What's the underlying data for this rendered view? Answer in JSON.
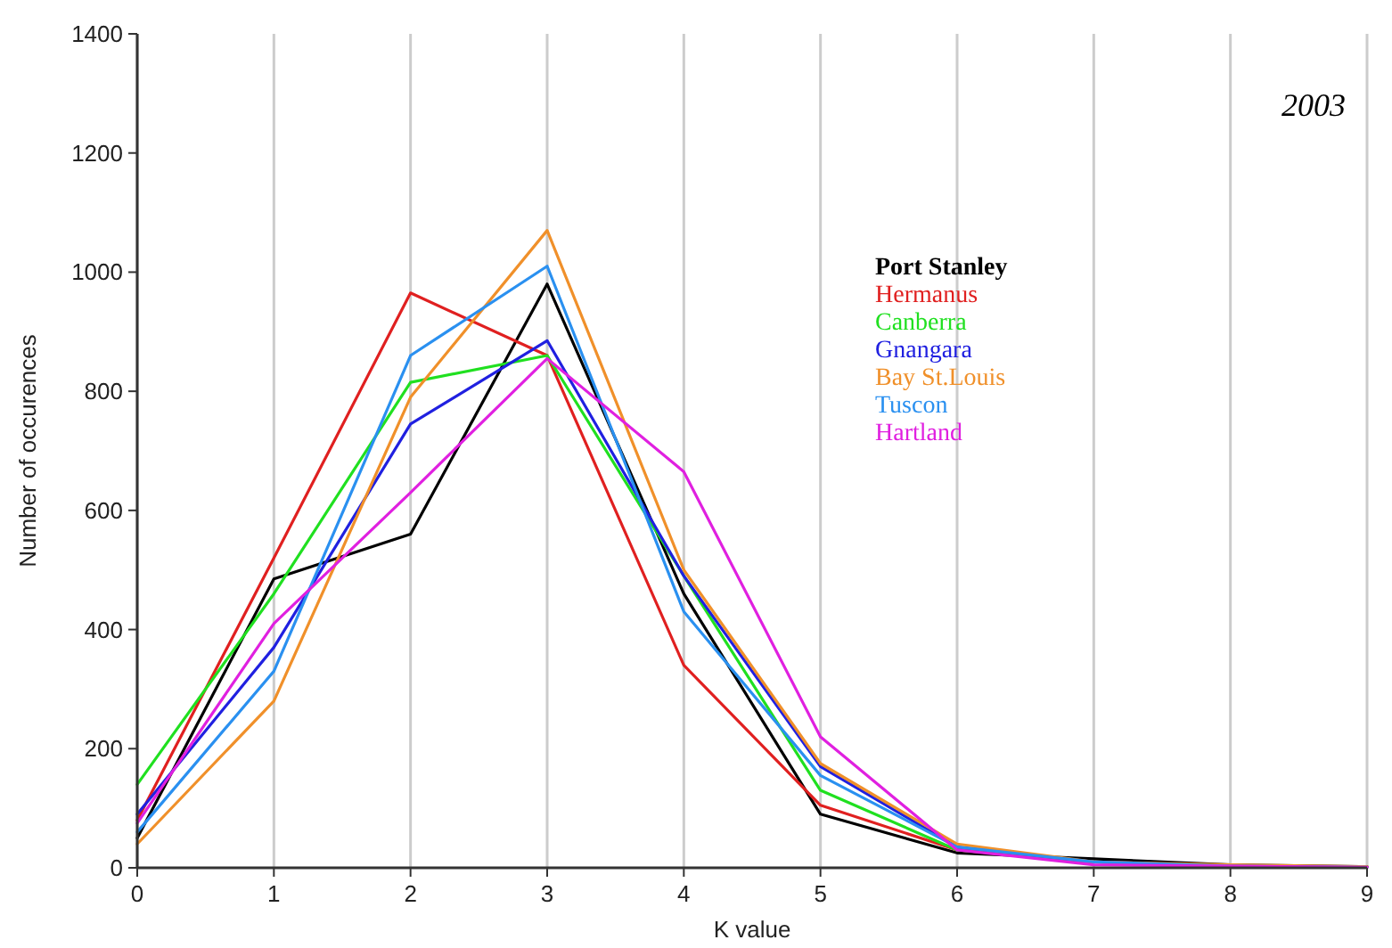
{
  "chart_data": {
    "type": "line",
    "title": "2003",
    "xlabel": "K value",
    "ylabel": "Number of occurences",
    "x": [
      0,
      1,
      2,
      3,
      4,
      5,
      6,
      7,
      8,
      9
    ],
    "xlim": [
      0,
      9
    ],
    "xticks": [
      0,
      1,
      2,
      3,
      4,
      5,
      6,
      7,
      8,
      9
    ],
    "ylim": [
      0,
      1400
    ],
    "yticks": [
      0,
      200,
      400,
      600,
      800,
      1000,
      1200,
      1400
    ],
    "grid": "x",
    "legend": "right",
    "marker": "none",
    "line_style": "solid",
    "series": [
      {
        "name": "Port Stanley",
        "color": "#000000",
        "values": [
          50,
          485,
          560,
          980,
          460,
          90,
          25,
          15,
          5,
          2
        ]
      },
      {
        "name": "Hermanus",
        "color": "#e02020",
        "values": [
          80,
          520,
          965,
          860,
          340,
          105,
          30,
          10,
          3,
          1
        ]
      },
      {
        "name": "Canberra",
        "color": "#20e020",
        "values": [
          140,
          460,
          815,
          860,
          490,
          130,
          30,
          10,
          null,
          null
        ]
      },
      {
        "name": "Gnangara",
        "color": "#2020e0",
        "values": [
          90,
          370,
          745,
          885,
          490,
          170,
          35,
          10,
          3,
          1
        ]
      },
      {
        "name": "Bay St.Louis",
        "color": "#f0902a",
        "values": [
          40,
          280,
          790,
          1070,
          500,
          175,
          40,
          10,
          5,
          2
        ]
      },
      {
        "name": "Tuscon",
        "color": "#2a90f0",
        "values": [
          60,
          330,
          860,
          1010,
          430,
          155,
          35,
          10,
          3,
          1
        ]
      },
      {
        "name": "Hartland",
        "color": "#e020e0",
        "values": [
          75,
          410,
          630,
          855,
          665,
          220,
          30,
          5,
          3,
          1
        ]
      }
    ]
  }
}
